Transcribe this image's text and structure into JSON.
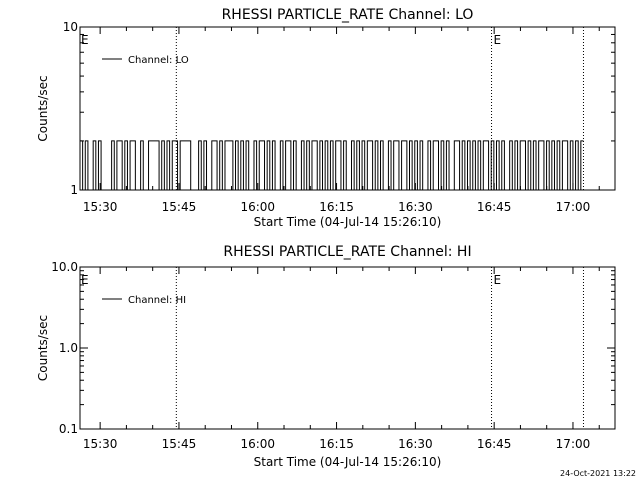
{
  "footer_timestamp": "24-Oct-2021 13:22",
  "colors": {
    "background": "#ffffff",
    "line": "#000000"
  },
  "chart_data": [
    {
      "type": "line",
      "title": "RHESSI PARTICLE_RATE Channel: LO",
      "xlabel": "Start Time (04-Jul-14 15:26:10)",
      "ylabel": "Counts/sec",
      "y_scale": "log",
      "ylim": [
        1,
        10
      ],
      "y_ticks": [
        1,
        10
      ],
      "y_tick_labels": [
        "1",
        "10"
      ],
      "xlim": [
        "15:26:10",
        "17:08:00"
      ],
      "x_ticks": [
        "15:30",
        "15:45",
        "16:00",
        "16:15",
        "16:30",
        "16:45",
        "17:00"
      ],
      "legend": {
        "label": "Channel: LO",
        "placement": "top-left"
      },
      "marker_lines": [
        {
          "time": "15:44:30",
          "label": ""
        },
        {
          "time": "16:44:30",
          "label": "E"
        },
        {
          "time": "17:02:00",
          "label": ""
        }
      ],
      "start_marker_label": "E",
      "series": [
        {
          "description": "count rate toggling between 1 and 2 counts/sec",
          "levels": [
            1,
            2
          ],
          "x_start": "15:26:10",
          "x_end": "17:02:00",
          "values": [
            2,
            1,
            2,
            1,
            1,
            2,
            1,
            2,
            1,
            1,
            1,
            1,
            2,
            1,
            2,
            2,
            1,
            2,
            1,
            2,
            2,
            1,
            1,
            2,
            1,
            1,
            2,
            2,
            2,
            2,
            1,
            2,
            1,
            2,
            1,
            2,
            2,
            1,
            2,
            2,
            2,
            2,
            1,
            1,
            1,
            2,
            1,
            2,
            1,
            1,
            2,
            2,
            1,
            2,
            1,
            2,
            2,
            2,
            1,
            2,
            1,
            2,
            1,
            2,
            1,
            1,
            2,
            1,
            2,
            2,
            1,
            2,
            1,
            2,
            1,
            1,
            2,
            1,
            2,
            2,
            1,
            2,
            1,
            1,
            2,
            1,
            2,
            1,
            2,
            2,
            1,
            2,
            1,
            2,
            1,
            2,
            1,
            2,
            2,
            1,
            2,
            1,
            1,
            2,
            1,
            2,
            1,
            2,
            1,
            2,
            2,
            1,
            2,
            1,
            2,
            1,
            1,
            2,
            1,
            2,
            2,
            1,
            2,
            2,
            1,
            2,
            1,
            2,
            1,
            2,
            1,
            1,
            2,
            1,
            2,
            2,
            1,
            2,
            1,
            2,
            1,
            1,
            2,
            2,
            1,
            2,
            1,
            2,
            1,
            2,
            1,
            2,
            1,
            2,
            2,
            1,
            2,
            1,
            2,
            1,
            2,
            1,
            1,
            2,
            1,
            2,
            1,
            2,
            2,
            1,
            2,
            1,
            2,
            1,
            2,
            2,
            1,
            2,
            1,
            2,
            1,
            2,
            1,
            2,
            2,
            1,
            2,
            1,
            2,
            1,
            2
          ]
        }
      ]
    },
    {
      "type": "line",
      "title": "RHESSI PARTICLE_RATE Channel: HI",
      "xlabel": "Start Time (04-Jul-14 15:26:10)",
      "ylabel": "Counts/sec",
      "y_scale": "log",
      "ylim": [
        0.1,
        10
      ],
      "y_ticks": [
        0.1,
        1,
        10
      ],
      "y_tick_labels": [
        "0.1",
        "1.0",
        "10.0"
      ],
      "xlim": [
        "15:26:10",
        "17:08:00"
      ],
      "x_ticks": [
        "15:30",
        "15:45",
        "16:00",
        "16:15",
        "16:30",
        "16:45",
        "17:00"
      ],
      "legend": {
        "label": "Channel: HI",
        "placement": "top-left"
      },
      "marker_lines": [
        {
          "time": "15:44:30",
          "label": ""
        },
        {
          "time": "16:44:30",
          "label": "E"
        },
        {
          "time": "17:02:00",
          "label": ""
        }
      ],
      "start_marker_label": "E",
      "series": []
    }
  ]
}
